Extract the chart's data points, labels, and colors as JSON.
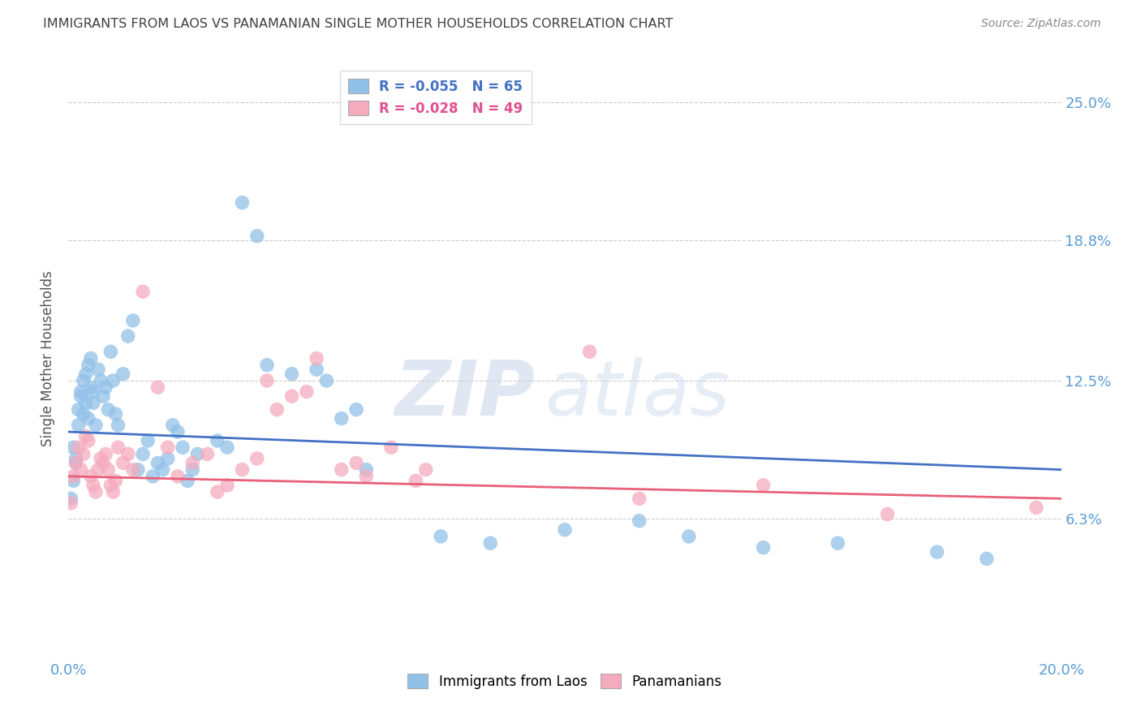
{
  "title": "IMMIGRANTS FROM LAOS VS PANAMANIAN SINGLE MOTHER HOUSEHOLDS CORRELATION CHART",
  "source": "Source: ZipAtlas.com",
  "ylabel": "Single Mother Households",
  "yticks": [
    6.3,
    12.5,
    18.8,
    25.0
  ],
  "xlim": [
    0.0,
    20.0
  ],
  "ylim": [
    0.0,
    27.0
  ],
  "legend_blue": "R = -0.055   N = 65",
  "legend_pink": "R = -0.028   N = 49",
  "legend_label_blue": "Immigrants from Laos",
  "legend_label_pink": "Panamanians",
  "blue_points": [
    [
      0.05,
      7.2
    ],
    [
      0.1,
      8.0
    ],
    [
      0.1,
      9.5
    ],
    [
      0.15,
      8.8
    ],
    [
      0.15,
      9.0
    ],
    [
      0.2,
      10.5
    ],
    [
      0.2,
      11.2
    ],
    [
      0.25,
      11.8
    ],
    [
      0.25,
      12.0
    ],
    [
      0.3,
      12.5
    ],
    [
      0.3,
      11.0
    ],
    [
      0.35,
      11.5
    ],
    [
      0.35,
      12.8
    ],
    [
      0.4,
      10.8
    ],
    [
      0.4,
      13.2
    ],
    [
      0.45,
      12.2
    ],
    [
      0.45,
      13.5
    ],
    [
      0.5,
      11.5
    ],
    [
      0.5,
      12.0
    ],
    [
      0.55,
      10.5
    ],
    [
      0.6,
      13.0
    ],
    [
      0.65,
      12.5
    ],
    [
      0.7,
      11.8
    ],
    [
      0.75,
      12.2
    ],
    [
      0.8,
      11.2
    ],
    [
      0.85,
      13.8
    ],
    [
      0.9,
      12.5
    ],
    [
      0.95,
      11.0
    ],
    [
      1.0,
      10.5
    ],
    [
      1.1,
      12.8
    ],
    [
      1.2,
      14.5
    ],
    [
      1.3,
      15.2
    ],
    [
      1.4,
      8.5
    ],
    [
      1.5,
      9.2
    ],
    [
      1.6,
      9.8
    ],
    [
      1.7,
      8.2
    ],
    [
      1.8,
      8.8
    ],
    [
      1.9,
      8.5
    ],
    [
      2.0,
      9.0
    ],
    [
      2.1,
      10.5
    ],
    [
      2.2,
      10.2
    ],
    [
      2.3,
      9.5
    ],
    [
      2.4,
      8.0
    ],
    [
      2.5,
      8.5
    ],
    [
      2.6,
      9.2
    ],
    [
      3.0,
      9.8
    ],
    [
      3.2,
      9.5
    ],
    [
      3.5,
      20.5
    ],
    [
      4.0,
      13.2
    ],
    [
      4.5,
      12.8
    ],
    [
      5.0,
      13.0
    ],
    [
      5.2,
      12.5
    ],
    [
      5.5,
      10.8
    ],
    [
      5.8,
      11.2
    ],
    [
      6.0,
      8.5
    ],
    [
      7.5,
      5.5
    ],
    [
      8.5,
      5.2
    ],
    [
      10.0,
      5.8
    ],
    [
      11.5,
      6.2
    ],
    [
      12.5,
      5.5
    ],
    [
      14.0,
      5.0
    ],
    [
      15.5,
      5.2
    ],
    [
      17.5,
      4.8
    ],
    [
      18.5,
      4.5
    ],
    [
      3.8,
      19.0
    ]
  ],
  "pink_points": [
    [
      0.05,
      7.0
    ],
    [
      0.1,
      8.2
    ],
    [
      0.15,
      8.8
    ],
    [
      0.2,
      9.5
    ],
    [
      0.25,
      8.5
    ],
    [
      0.3,
      9.2
    ],
    [
      0.35,
      10.0
    ],
    [
      0.4,
      9.8
    ],
    [
      0.45,
      8.2
    ],
    [
      0.5,
      7.8
    ],
    [
      0.55,
      7.5
    ],
    [
      0.6,
      8.5
    ],
    [
      0.65,
      9.0
    ],
    [
      0.7,
      8.8
    ],
    [
      0.75,
      9.2
    ],
    [
      0.8,
      8.5
    ],
    [
      0.85,
      7.8
    ],
    [
      0.9,
      7.5
    ],
    [
      0.95,
      8.0
    ],
    [
      1.0,
      9.5
    ],
    [
      1.1,
      8.8
    ],
    [
      1.2,
      9.2
    ],
    [
      1.3,
      8.5
    ],
    [
      1.5,
      16.5
    ],
    [
      1.8,
      12.2
    ],
    [
      2.0,
      9.5
    ],
    [
      2.2,
      8.2
    ],
    [
      2.5,
      8.8
    ],
    [
      2.8,
      9.2
    ],
    [
      3.0,
      7.5
    ],
    [
      3.2,
      7.8
    ],
    [
      3.5,
      8.5
    ],
    [
      3.8,
      9.0
    ],
    [
      4.0,
      12.5
    ],
    [
      4.2,
      11.2
    ],
    [
      4.5,
      11.8
    ],
    [
      4.8,
      12.0
    ],
    [
      5.0,
      13.5
    ],
    [
      5.5,
      8.5
    ],
    [
      5.8,
      8.8
    ],
    [
      6.0,
      8.2
    ],
    [
      6.5,
      9.5
    ],
    [
      7.0,
      8.0
    ],
    [
      7.2,
      8.5
    ],
    [
      10.5,
      13.8
    ],
    [
      11.5,
      7.2
    ],
    [
      14.0,
      7.8
    ],
    [
      16.5,
      6.5
    ],
    [
      19.5,
      6.8
    ]
  ],
  "blue_line_x": [
    0.0,
    20.0
  ],
  "blue_line_y": [
    10.2,
    8.5
  ],
  "pink_line_x": [
    0.0,
    20.0
  ],
  "pink_line_y": [
    8.2,
    7.2
  ],
  "watermark_zip": "ZIP",
  "watermark_atlas": "atlas",
  "bg_color": "#ffffff",
  "blue_color": "#92C1E8",
  "pink_color": "#F5ABBE",
  "blue_line_color": "#4472C4",
  "pink_line_color": "#E8607A",
  "axis_label_color": "#5B9BD5",
  "grid_color": "#cccccc",
  "title_color": "#404040",
  "source_color": "#888888",
  "ylabel_color": "#555555"
}
